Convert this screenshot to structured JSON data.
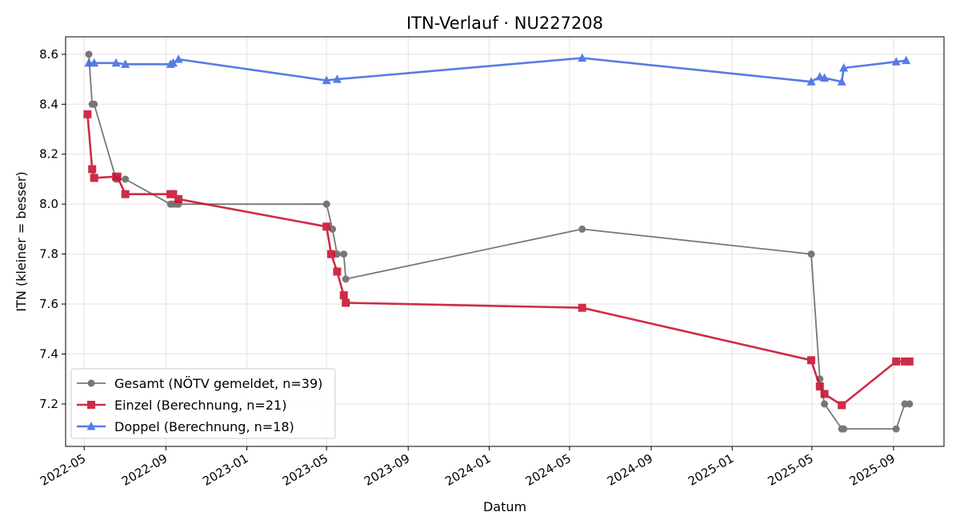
{
  "chart_data": {
    "type": "line",
    "title": "ITN-Verlauf · NU227208",
    "xlabel": "Datum",
    "ylabel": "ITN  (kleiner = besser)",
    "x_type": "date",
    "xlim": [
      "2022-04-03",
      "2025-11-16"
    ],
    "ylim": [
      7.03,
      8.67
    ],
    "x_ticks": [
      "2022-05",
      "2022-09",
      "2023-01",
      "2023-05",
      "2023-09",
      "2024-01",
      "2024-05",
      "2024-09",
      "2025-01",
      "2025-05",
      "2025-09"
    ],
    "y_ticks": [
      7.2,
      7.4,
      7.6,
      7.8,
      8.0,
      8.2,
      8.4,
      8.6
    ],
    "grid": true,
    "legend_position": "lower-left",
    "series": [
      {
        "name": "Gesamt (NÖTV gemeldet, n=39)",
        "color": "#404040",
        "marker": "circle",
        "points": [
          [
            "2022-05-08",
            8.6
          ],
          [
            "2022-05-13",
            8.4
          ],
          [
            "2022-05-16",
            8.4
          ],
          [
            "2022-06-18",
            8.1
          ],
          [
            "2022-06-20",
            8.1
          ],
          [
            "2022-07-02",
            8.1
          ],
          [
            "2022-09-08",
            8.0
          ],
          [
            "2022-09-12",
            8.0
          ],
          [
            "2022-09-17",
            8.0
          ],
          [
            "2022-09-20",
            8.0
          ],
          [
            "2023-05-01",
            8.0
          ],
          [
            "2023-05-10",
            7.9
          ],
          [
            "2023-05-17",
            7.8
          ],
          [
            "2023-05-27",
            7.8
          ],
          [
            "2023-05-30",
            7.7
          ],
          [
            "2024-05-20",
            7.9
          ],
          [
            "2025-04-30",
            7.8
          ],
          [
            "2025-05-13",
            7.3
          ],
          [
            "2025-05-20",
            7.2
          ],
          [
            "2025-06-15",
            7.1
          ],
          [
            "2025-06-18",
            7.1
          ],
          [
            "2025-09-05",
            7.1
          ],
          [
            "2025-09-18",
            7.2
          ],
          [
            "2025-09-25",
            7.2
          ]
        ]
      },
      {
        "name": "Einzel (Berechnung, n=21)",
        "color": "#c8102e",
        "marker": "square",
        "points": [
          [
            "2022-05-06",
            8.36
          ],
          [
            "2022-05-13",
            8.14
          ],
          [
            "2022-05-16",
            8.105
          ],
          [
            "2022-06-18",
            8.11
          ],
          [
            "2022-06-20",
            8.11
          ],
          [
            "2022-07-02",
            8.04
          ],
          [
            "2022-09-08",
            8.04
          ],
          [
            "2022-09-12",
            8.04
          ],
          [
            "2022-09-20",
            8.02
          ],
          [
            "2023-05-01",
            7.91
          ],
          [
            "2023-05-08",
            7.8
          ],
          [
            "2023-05-17",
            7.73
          ],
          [
            "2023-05-27",
            7.635
          ],
          [
            "2023-05-30",
            7.605
          ],
          [
            "2024-05-20",
            7.585
          ],
          [
            "2025-04-30",
            7.375
          ],
          [
            "2025-05-13",
            7.27
          ],
          [
            "2025-05-20",
            7.24
          ],
          [
            "2025-06-15",
            7.195
          ],
          [
            "2025-09-05",
            7.37
          ],
          [
            "2025-09-18",
            7.37
          ],
          [
            "2025-09-25",
            7.37
          ]
        ]
      },
      {
        "name": "Doppel (Berechnung, n=18)",
        "color": "#4169e1",
        "marker": "triangle",
        "points": [
          [
            "2022-05-08",
            8.565
          ],
          [
            "2022-05-16",
            8.565
          ],
          [
            "2022-06-18",
            8.565
          ],
          [
            "2022-07-02",
            8.56
          ],
          [
            "2022-09-08",
            8.56
          ],
          [
            "2022-09-12",
            8.565
          ],
          [
            "2022-09-20",
            8.58
          ],
          [
            "2023-05-01",
            8.495
          ],
          [
            "2023-05-17",
            8.5
          ],
          [
            "2024-05-20",
            8.585
          ],
          [
            "2025-04-30",
            8.49
          ],
          [
            "2025-05-13",
            8.51
          ],
          [
            "2025-05-20",
            8.505
          ],
          [
            "2025-06-15",
            8.49
          ],
          [
            "2025-06-18",
            8.545
          ],
          [
            "2025-09-05",
            8.57
          ],
          [
            "2025-09-20",
            8.575
          ]
        ]
      }
    ]
  }
}
